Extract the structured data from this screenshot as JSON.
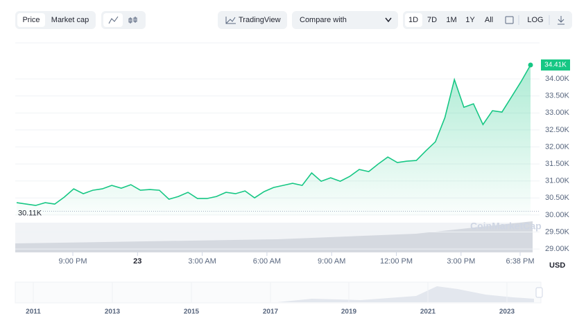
{
  "controls": {
    "price": "Price",
    "market_cap": "Market cap",
    "tradingview": "TradingView",
    "compare": "Compare with",
    "ranges": [
      "1D",
      "7D",
      "1M",
      "1Y",
      "All"
    ],
    "log": "LOG"
  },
  "chart_data": {
    "type": "line",
    "color": "#16c784",
    "currency": "USD",
    "watermark": "CoinMarketCap",
    "xtick_labels": [
      "9:00 PM",
      "23",
      "3:00 AM",
      "6:00 AM",
      "9:00 AM",
      "12:00 PM",
      "3:00 PM",
      "6:38 PM"
    ],
    "values": [
      30362,
      30321,
      30281,
      30362,
      30321,
      30524,
      30768,
      30626,
      30728,
      30768,
      30870,
      30789,
      30890,
      30728,
      30748,
      30728,
      30463,
      30545,
      30667,
      30484,
      30484,
      30545,
      30667,
      30626,
      30707,
      30504,
      30687,
      30809,
      30870,
      30931,
      30870,
      31236,
      30992,
      31094,
      30992,
      31134,
      31337,
      31276,
      31500,
      31703,
      31541,
      31581,
      31602,
      31886,
      32150,
      32862,
      33980,
      33167,
      33268,
      32659,
      33065,
      33024,
      33472,
      33919,
      34410
    ],
    "ylim": [
      28900,
      35060
    ],
    "yticks": [
      {
        "value": 29000,
        "label": "29.00K"
      },
      {
        "value": 29500,
        "label": "29.50K"
      },
      {
        "value": 30000,
        "label": "30.00K"
      },
      {
        "value": 30500,
        "label": "30.50K"
      },
      {
        "value": 31000,
        "label": "31.00K"
      },
      {
        "value": 31500,
        "label": "31.50K"
      },
      {
        "value": 32000,
        "label": "32.00K"
      },
      {
        "value": 32500,
        "label": "32.50K"
      },
      {
        "value": 33000,
        "label": "33.00K"
      },
      {
        "value": 33500,
        "label": "33.50K"
      },
      {
        "value": 34000,
        "label": "34.00K"
      }
    ],
    "annotations": [
      {
        "value": 34410,
        "label": "34.41K"
      },
      {
        "value": 30110,
        "label": "30.11K"
      }
    ],
    "grid": true
  },
  "navigator": {
    "years": [
      "2011",
      "2013",
      "2015",
      "2017",
      "2019",
      "2021",
      "2023"
    ]
  }
}
